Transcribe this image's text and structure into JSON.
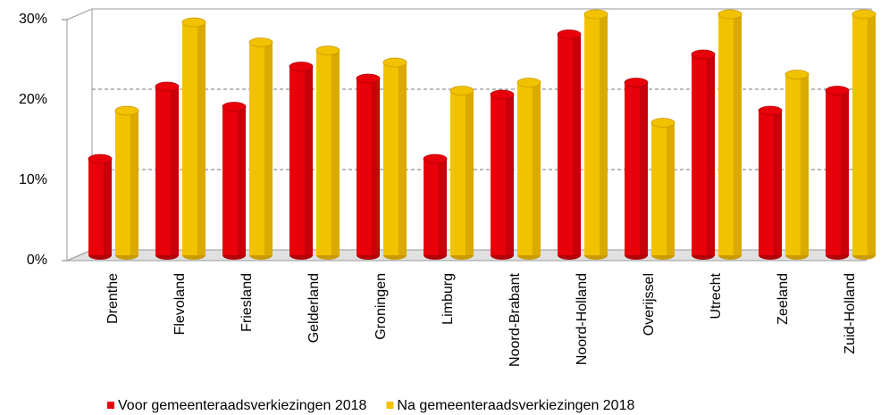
{
  "chart_data": {
    "type": "bar3d",
    "categories": [
      "Drenthe",
      "Flevoland",
      "Friesland",
      "Gelderland",
      "Groningen",
      "Limburg",
      "Noord-Brabant",
      "Noord-Holland",
      "Overijssel",
      "Utrecht",
      "Zeeland",
      "Zuid-Holland"
    ],
    "series": [
      {
        "name": "Voor gemeenteraadsverkiezingen 2018",
        "color": "#e8000b",
        "values": [
          12,
          21,
          18.5,
          23.5,
          22,
          12,
          20,
          27.5,
          21.5,
          25,
          18,
          20.5
        ]
      },
      {
        "name": "Na gemeenteraadsverkiezingen 2018",
        "color": "#f2c200",
        "values": [
          18,
          29,
          26.5,
          25.5,
          24,
          20.5,
          21.5,
          30,
          16.5,
          30,
          22.5,
          30
        ]
      }
    ],
    "ylim": [
      0,
      30
    ],
    "yticks": [
      {
        "value": 0,
        "label": "0%"
      },
      {
        "value": 10,
        "label": "10%"
      },
      {
        "value": 20,
        "label": "20%"
      },
      {
        "value": 30,
        "label": "30%"
      }
    ],
    "grid": true
  }
}
